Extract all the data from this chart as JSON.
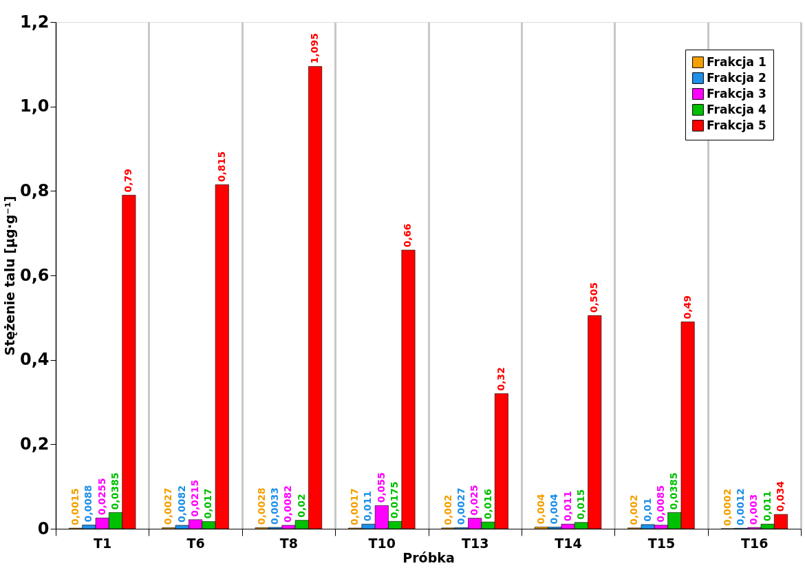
{
  "chart_data": {
    "type": "bar",
    "xlabel": "Próbka",
    "ylabel": "Stężenie talu [µg·g⁻¹]",
    "categories": [
      "T1",
      "T6",
      "T8",
      "T10",
      "T13",
      "T14",
      "T15",
      "T16"
    ],
    "series": [
      {
        "name": "Frakcja 1",
        "color": "#f5a000",
        "values": [
          0.0015,
          0.0027,
          0.0028,
          0.0017,
          0.002,
          0.004,
          0.002,
          0.0002
        ],
        "value_labels": [
          "0,0015",
          "0,0027",
          "0,0028",
          "0,0017",
          "0,002",
          "0,004",
          "0,002",
          "0,0002"
        ]
      },
      {
        "name": "Frakcja 2",
        "color": "#1e90e8",
        "values": [
          0.0088,
          0.0082,
          0.0033,
          0.011,
          0.0027,
          0.004,
          0.01,
          0.0012
        ],
        "value_labels": [
          "0,0088",
          "0,0082",
          "0,0033",
          "0,011",
          "0,0027",
          "0,004",
          "0,01",
          "0,0012"
        ]
      },
      {
        "name": "Frakcja 3",
        "color": "#ff00ff",
        "values": [
          0.0255,
          0.0215,
          0.0082,
          0.055,
          0.025,
          0.011,
          0.0085,
          0.003
        ],
        "value_labels": [
          "0,0255",
          "0,0215",
          "0,0082",
          "0,055",
          "0,025",
          "0,011",
          "0,0085",
          "0,003"
        ]
      },
      {
        "name": "Frakcja 4",
        "color": "#00c000",
        "values": [
          0.0385,
          0.017,
          0.02,
          0.0175,
          0.016,
          0.015,
          0.0385,
          0.011
        ],
        "value_labels": [
          "0,0385",
          "0,017",
          "0,02",
          "0,0175",
          "0,016",
          "0,015",
          "0,0385",
          "0,011"
        ]
      },
      {
        "name": "Frakcja 5",
        "color": "#ff0000",
        "values": [
          0.79,
          0.815,
          1.095,
          0.66,
          0.32,
          0.505,
          0.49,
          0.034
        ],
        "value_labels": [
          "0,79",
          "0,815",
          "1,095",
          "0,66",
          "0,32",
          "0,505",
          "0,49",
          "0,034"
        ]
      }
    ],
    "ylim": [
      0,
      1.2
    ],
    "yticks": [
      0,
      {
        "value": 0.2,
        "label": "0,2"
      },
      {
        "value": 0.4,
        "label": "0,4"
      },
      {
        "value": 0.6,
        "label": "0,6"
      },
      {
        "value": 0.8,
        "label": "0,8"
      },
      {
        "value": 1.0,
        "label": "1,0"
      },
      {
        "value": 1.2,
        "label": "1,2"
      }
    ],
    "grid": "x",
    "legend": "top right"
  }
}
